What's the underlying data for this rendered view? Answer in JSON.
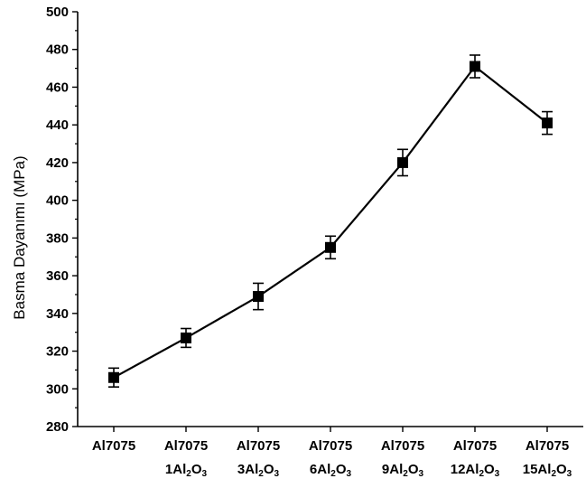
{
  "chart_data": {
    "type": "line",
    "title": "",
    "xlabel": "",
    "ylabel": "Basma Dayanımı (MPa)",
    "ylim": [
      280,
      500
    ],
    "yticks": [
      280,
      300,
      320,
      340,
      360,
      380,
      400,
      420,
      440,
      460,
      480,
      500
    ],
    "grid": false,
    "legend": "none",
    "categories": [
      {
        "line1": "Al7075",
        "line2": []
      },
      {
        "line1": "Al7075",
        "line2": [
          {
            "t": "1Al"
          },
          {
            "t": "2",
            "sub": true
          },
          {
            "t": "O"
          },
          {
            "t": "3",
            "sub": true
          }
        ]
      },
      {
        "line1": "Al7075",
        "line2": [
          {
            "t": "3Al"
          },
          {
            "t": "2",
            "sub": true
          },
          {
            "t": "O"
          },
          {
            "t": "3",
            "sub": true
          }
        ]
      },
      {
        "line1": "Al7075",
        "line2": [
          {
            "t": "6Al"
          },
          {
            "t": "2",
            "sub": true
          },
          {
            "t": "O"
          },
          {
            "t": "3",
            "sub": true
          }
        ]
      },
      {
        "line1": "Al7075",
        "line2": [
          {
            "t": "9Al"
          },
          {
            "t": "2",
            "sub": true
          },
          {
            "t": "O"
          },
          {
            "t": "3",
            "sub": true
          }
        ]
      },
      {
        "line1": "Al7075",
        "line2": [
          {
            "t": "12Al"
          },
          {
            "t": "2",
            "sub": true
          },
          {
            "t": "O"
          },
          {
            "t": "3",
            "sub": true
          }
        ]
      },
      {
        "line1": "Al7075",
        "line2": [
          {
            "t": "15Al"
          },
          {
            "t": "2",
            "sub": true
          },
          {
            "t": "O"
          },
          {
            "t": "3",
            "sub": true
          }
        ]
      }
    ],
    "series": [
      {
        "values": [
          306,
          327,
          349,
          375,
          420,
          471,
          441
        ],
        "errors": [
          5,
          5,
          7,
          6,
          7,
          6,
          6
        ],
        "color": "#000000",
        "marker": "square"
      }
    ]
  }
}
